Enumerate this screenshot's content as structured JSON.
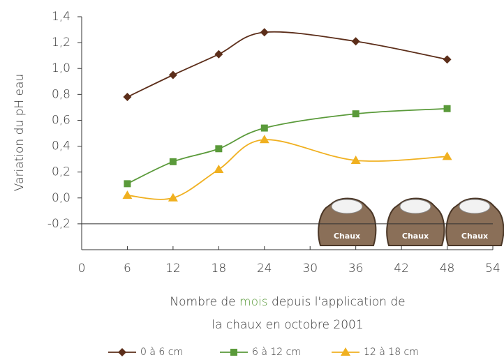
{
  "chart_data": {
    "type": "line",
    "x_label_parts": [
      "Nombre de ",
      "mois",
      " depuis l'application de"
    ],
    "x_label_line2": "la chaux en octobre 2001",
    "x_label_highlight_color": "#5a9a3a",
    "y_label": "Variation du pH eau",
    "x": [
      6,
      12,
      18,
      24,
      36,
      48
    ],
    "series": [
      {
        "name": "0 à 6 cm",
        "color": "#5c2e1a",
        "marker": "diamond",
        "values": [
          0.78,
          0.95,
          1.11,
          1.28,
          1.21,
          1.07
        ]
      },
      {
        "name": "6 à 12 cm",
        "color": "#5a9a3a",
        "marker": "square",
        "values": [
          0.11,
          0.28,
          0.38,
          0.54,
          0.65,
          0.69
        ]
      },
      {
        "name": "12 à 18 cm",
        "color": "#f0b020",
        "marker": "triangle",
        "values": [
          0.02,
          0.0,
          0.22,
          0.45,
          0.29,
          0.32
        ]
      }
    ],
    "xlim": [
      0,
      54
    ],
    "xticks": [
      0,
      6,
      12,
      18,
      24,
      30,
      36,
      42,
      48,
      54
    ],
    "ylim": [
      -0.4,
      1.4
    ],
    "yticks": [
      {
        "value": -0.2,
        "label": "-0,2"
      },
      {
        "value": 0,
        "label": "0,0"
      },
      {
        "value": 0.2,
        "label": "0,2"
      },
      {
        "value": 0.4,
        "label": "0,4"
      },
      {
        "value": 0.6,
        "label": "0,6"
      },
      {
        "value": 0.8,
        "label": "0,8"
      },
      {
        "value": 1.0,
        "label": "1,0"
      },
      {
        "value": 1.2,
        "label": "1,2"
      },
      {
        "value": 1.4,
        "label": "1,4"
      }
    ],
    "x_axis_crossing": -0.2,
    "sacks": [
      "Chaux",
      "Chaux",
      "Chaux"
    ]
  }
}
